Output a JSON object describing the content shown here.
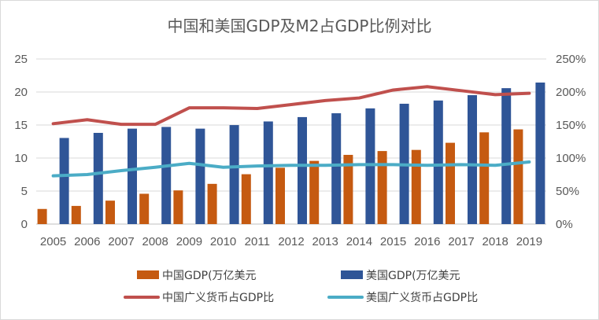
{
  "chart_data": {
    "type": "bar",
    "title": "中国和美国GDP及M2占GDP比例对比",
    "categories": [
      "2005",
      "2006",
      "2007",
      "2008",
      "2009",
      "2010",
      "2011",
      "2012",
      "2013",
      "2014",
      "2015",
      "2016",
      "2017",
      "2018",
      "2019"
    ],
    "series": [
      {
        "name": "中国GDP(万亿美元",
        "type": "bar",
        "axis": "left",
        "color": "#C55A11",
        "values": [
          2.29,
          2.75,
          3.55,
          4.59,
          5.1,
          6.09,
          7.55,
          8.53,
          9.57,
          10.48,
          11.06,
          11.23,
          12.31,
          13.89,
          14.34
        ]
      },
      {
        "name": "美国GDP(万亿美元",
        "type": "bar",
        "axis": "left",
        "color": "#2F5597",
        "values": [
          13.04,
          13.81,
          14.45,
          14.71,
          14.45,
          14.99,
          15.54,
          16.2,
          16.78,
          17.52,
          18.22,
          18.71,
          19.52,
          20.58,
          21.43
        ]
      },
      {
        "name": "中国广义货币占GDP比",
        "type": "line",
        "axis": "right",
        "color": "#C0504D",
        "values": [
          152,
          158,
          151,
          151,
          176,
          176,
          175,
          181,
          187,
          191,
          203,
          208,
          202,
          196,
          198
        ]
      },
      {
        "name": "美国广义货币占GDP比",
        "type": "line",
        "axis": "right",
        "color": "#4BACC6",
        "values": [
          73,
          75,
          81,
          86,
          92,
          86,
          88,
          89,
          89,
          90,
          90,
          89,
          90,
          89,
          94
        ]
      }
    ],
    "y_left": {
      "ticks": [
        "0",
        "5",
        "10",
        "15",
        "20",
        "25"
      ],
      "lim": [
        0,
        25
      ]
    },
    "y_right": {
      "ticks": [
        "0%",
        "50%",
        "100%",
        "150%",
        "200%",
        "250%"
      ],
      "lim": [
        0,
        250
      ]
    },
    "grid": true,
    "legend_position": "bottom"
  }
}
